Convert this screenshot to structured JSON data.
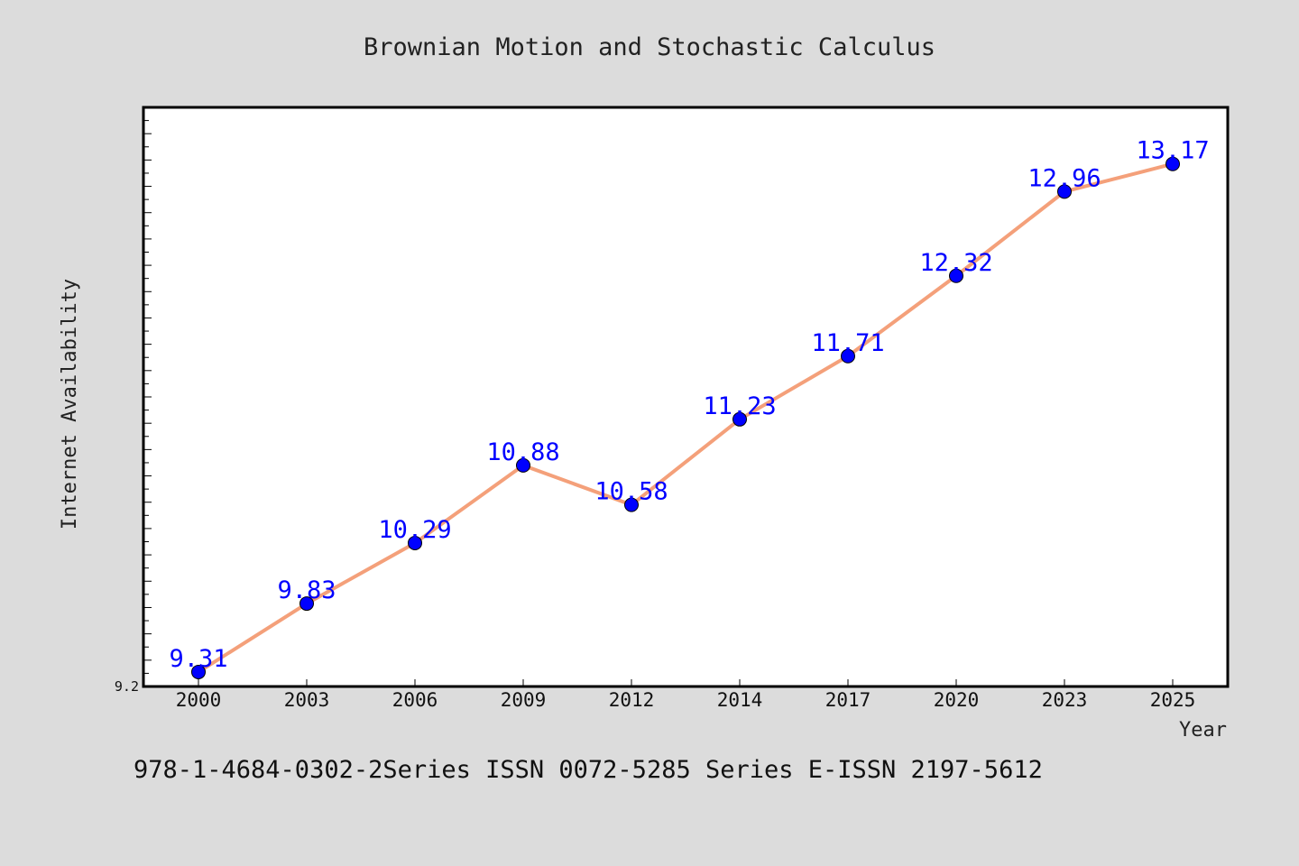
{
  "chart_data": {
    "type": "line",
    "title": "Brownian Motion and Stochastic Calculus",
    "xlabel": "Year",
    "ylabel": "Internet Availability",
    "categories": [
      "2000",
      "2003",
      "2006",
      "2009",
      "2012",
      "2014",
      "2017",
      "2020",
      "2023",
      "2025"
    ],
    "series": [
      {
        "values": [
          9.31,
          9.83,
          10.29,
          10.88,
          10.58,
          11.23,
          11.71,
          12.32,
          12.96,
          13.17
        ],
        "labels": [
          "9.31",
          "9.83",
          "10.29",
          "10.88",
          "10.58",
          "11.23",
          "11.71",
          "12.32",
          "12.96",
          "13.17"
        ]
      }
    ],
    "ylim": [
      9.2,
      13.6
    ],
    "yticks": [
      "9.2"
    ],
    "grid": false,
    "line_color": "#f4a07a",
    "marker_color": "#0000ff",
    "label_color": "#0000ff"
  },
  "footer": "978-1-4684-0302-2Series ISSN 0072-5285 Series E-ISSN 2197-5612"
}
